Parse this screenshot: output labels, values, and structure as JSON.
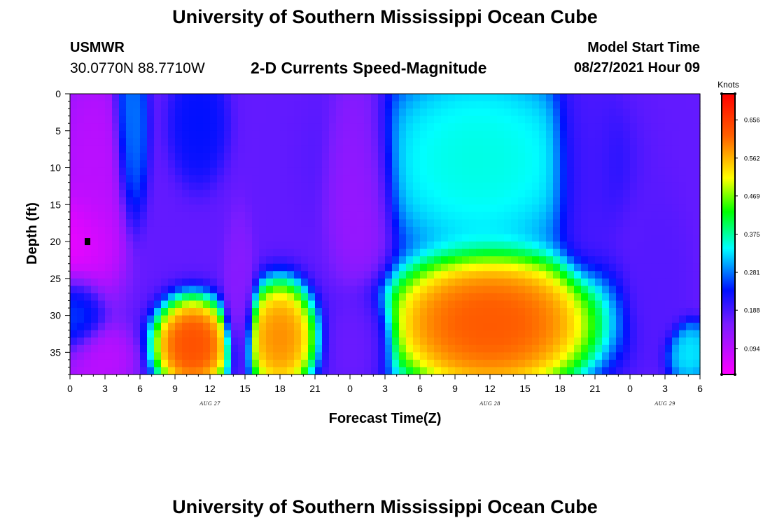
{
  "header": {
    "title": "University of Southern Mississippi Ocean Cube",
    "station_id": "USMWR",
    "station_coords": "30.0770N  88.7710W",
    "product_name": "2-D Currents Speed-Magnitude",
    "model_start_label": "Model Start Time",
    "model_start_value": "08/27/2021 Hour 09"
  },
  "footer": {
    "title": "University of Southern Mississippi Ocean Cube"
  },
  "chart_data": {
    "type": "heatmap",
    "title": "2-D Currents Speed-Magnitude",
    "xlabel": "Forecast Time(Z)",
    "ylabel": "Depth (ft)",
    "x_hours_range": [
      0,
      54
    ],
    "x_tick_labels": [
      "0",
      "3",
      "6",
      "9",
      "12",
      "15",
      "18",
      "21",
      "0",
      "3",
      "6",
      "9",
      "12",
      "15",
      "18",
      "21",
      "0",
      "3",
      "6"
    ],
    "date_labels": [
      {
        "label": "AUG 27",
        "hour": 12
      },
      {
        "label": "AUG 28",
        "hour": 36
      },
      {
        "label": "AUG 29",
        "hour": 51
      }
    ],
    "ylim": [
      0,
      38
    ],
    "y_ticks": [
      0,
      5,
      10,
      15,
      20,
      25,
      30,
      35
    ],
    "colorbar": {
      "unit": "Knots",
      "range": [
        0.03,
        0.72
      ],
      "tick_values": [
        0.094,
        0.188,
        0.281,
        0.375,
        0.469,
        0.562,
        0.656
      ],
      "tick_labels": [
        "0.094",
        "0.188",
        "0.281",
        "0.375",
        "0.469",
        "0.562",
        "0.656"
      ]
    },
    "marker": {
      "hour": 1.5,
      "depth": 20
    },
    "features": [
      {
        "hour": 0.5,
        "depth": 20,
        "value": 0.04,
        "sx": 2.2,
        "sy": 4.5
      },
      {
        "hour": 2.0,
        "depth": 12,
        "value": 0.09,
        "sx": 2.0,
        "sy": 10.0
      },
      {
        "hour": 2.2,
        "depth": 36,
        "value": 0.09,
        "sx": 2.0,
        "sy": 3.0
      },
      {
        "hour": 0.5,
        "depth": 30,
        "value": 0.26,
        "sx": 1.5,
        "sy": 4.0
      },
      {
        "hour": 5.2,
        "depth": 5,
        "value": 0.29,
        "sx": 0.9,
        "sy": 8.0
      },
      {
        "hour": 10.5,
        "depth": 34,
        "value": 0.66,
        "sx": 2.0,
        "sy": 3.8
      },
      {
        "hour": 18.0,
        "depth": 33,
        "value": 0.61,
        "sx": 1.8,
        "sy": 4.5
      },
      {
        "hour": 11.0,
        "depth": 4,
        "value": 0.24,
        "sx": 1.5,
        "sy": 5.0
      },
      {
        "hour": 14.5,
        "depth": 28,
        "value": 0.14,
        "sx": 0.8,
        "sy": 7.0
      },
      {
        "hour": 25.0,
        "depth": 33,
        "value": 0.16,
        "sx": 1.6,
        "sy": 4.0
      },
      {
        "hour": 25.0,
        "depth": 12,
        "value": 0.12,
        "sx": 1.8,
        "sy": 9.0
      },
      {
        "hour": 36.0,
        "depth": 31,
        "value": 0.65,
        "sx": 5.5,
        "sy": 6.0
      },
      {
        "hour": 35.0,
        "depth": 9,
        "value": 0.36,
        "sx": 6.0,
        "sy": 8.0
      },
      {
        "hour": 44.0,
        "depth": 8,
        "value": 0.18,
        "sx": 1.6,
        "sy": 9.0
      },
      {
        "hour": 50.5,
        "depth": 25,
        "value": 0.18,
        "sx": 1.5,
        "sy": 7.0
      },
      {
        "hour": 53.0,
        "depth": 35,
        "value": 0.34,
        "sx": 1.2,
        "sy": 2.5
      }
    ]
  }
}
